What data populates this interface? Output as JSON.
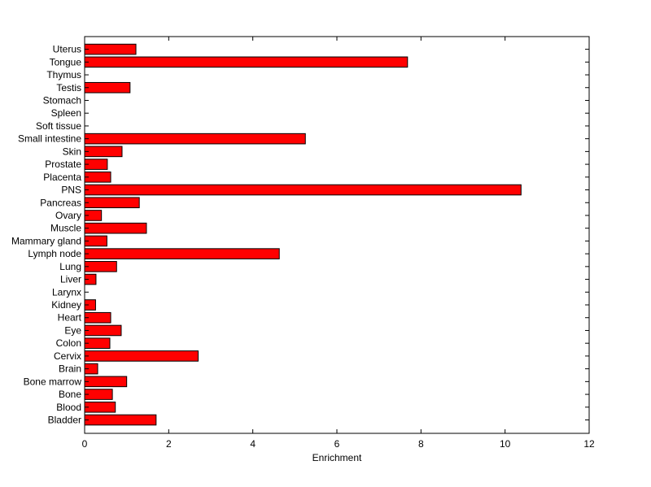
{
  "chart_data": {
    "type": "bar",
    "orientation": "horizontal",
    "title": "",
    "xlabel": "Enrichment",
    "ylabel": "",
    "xlim": [
      0,
      12
    ],
    "xticks": [
      0,
      2,
      4,
      6,
      8,
      10,
      12
    ],
    "grid": false,
    "legend": "none",
    "bar_color": "#ff0000",
    "bar_edge_color": "#000000",
    "categories": [
      "Bladder",
      "Blood",
      "Bone",
      "Bone marrow",
      "Brain",
      "Cervix",
      "Colon",
      "Eye",
      "Heart",
      "Kidney",
      "Larynx",
      "Liver",
      "Lung",
      "Lymph node",
      "Mammary gland",
      "Muscle",
      "Ovary",
      "Pancreas",
      "PNS",
      "Placenta",
      "Prostate",
      "Skin",
      "Small intestine",
      "Soft tissue",
      "Spleen",
      "Stomach",
      "Testis",
      "Thymus",
      "Tongue",
      "Uterus"
    ],
    "values": [
      1.7,
      0.73,
      0.66,
      1.0,
      0.31,
      2.7,
      0.6,
      0.87,
      0.62,
      0.26,
      0,
      0.27,
      0.76,
      4.63,
      0.53,
      1.47,
      0.4,
      1.3,
      10.38,
      0.62,
      0.54,
      0.89,
      5.25,
      0,
      0,
      0,
      1.08,
      0,
      7.68,
      1.22
    ]
  }
}
